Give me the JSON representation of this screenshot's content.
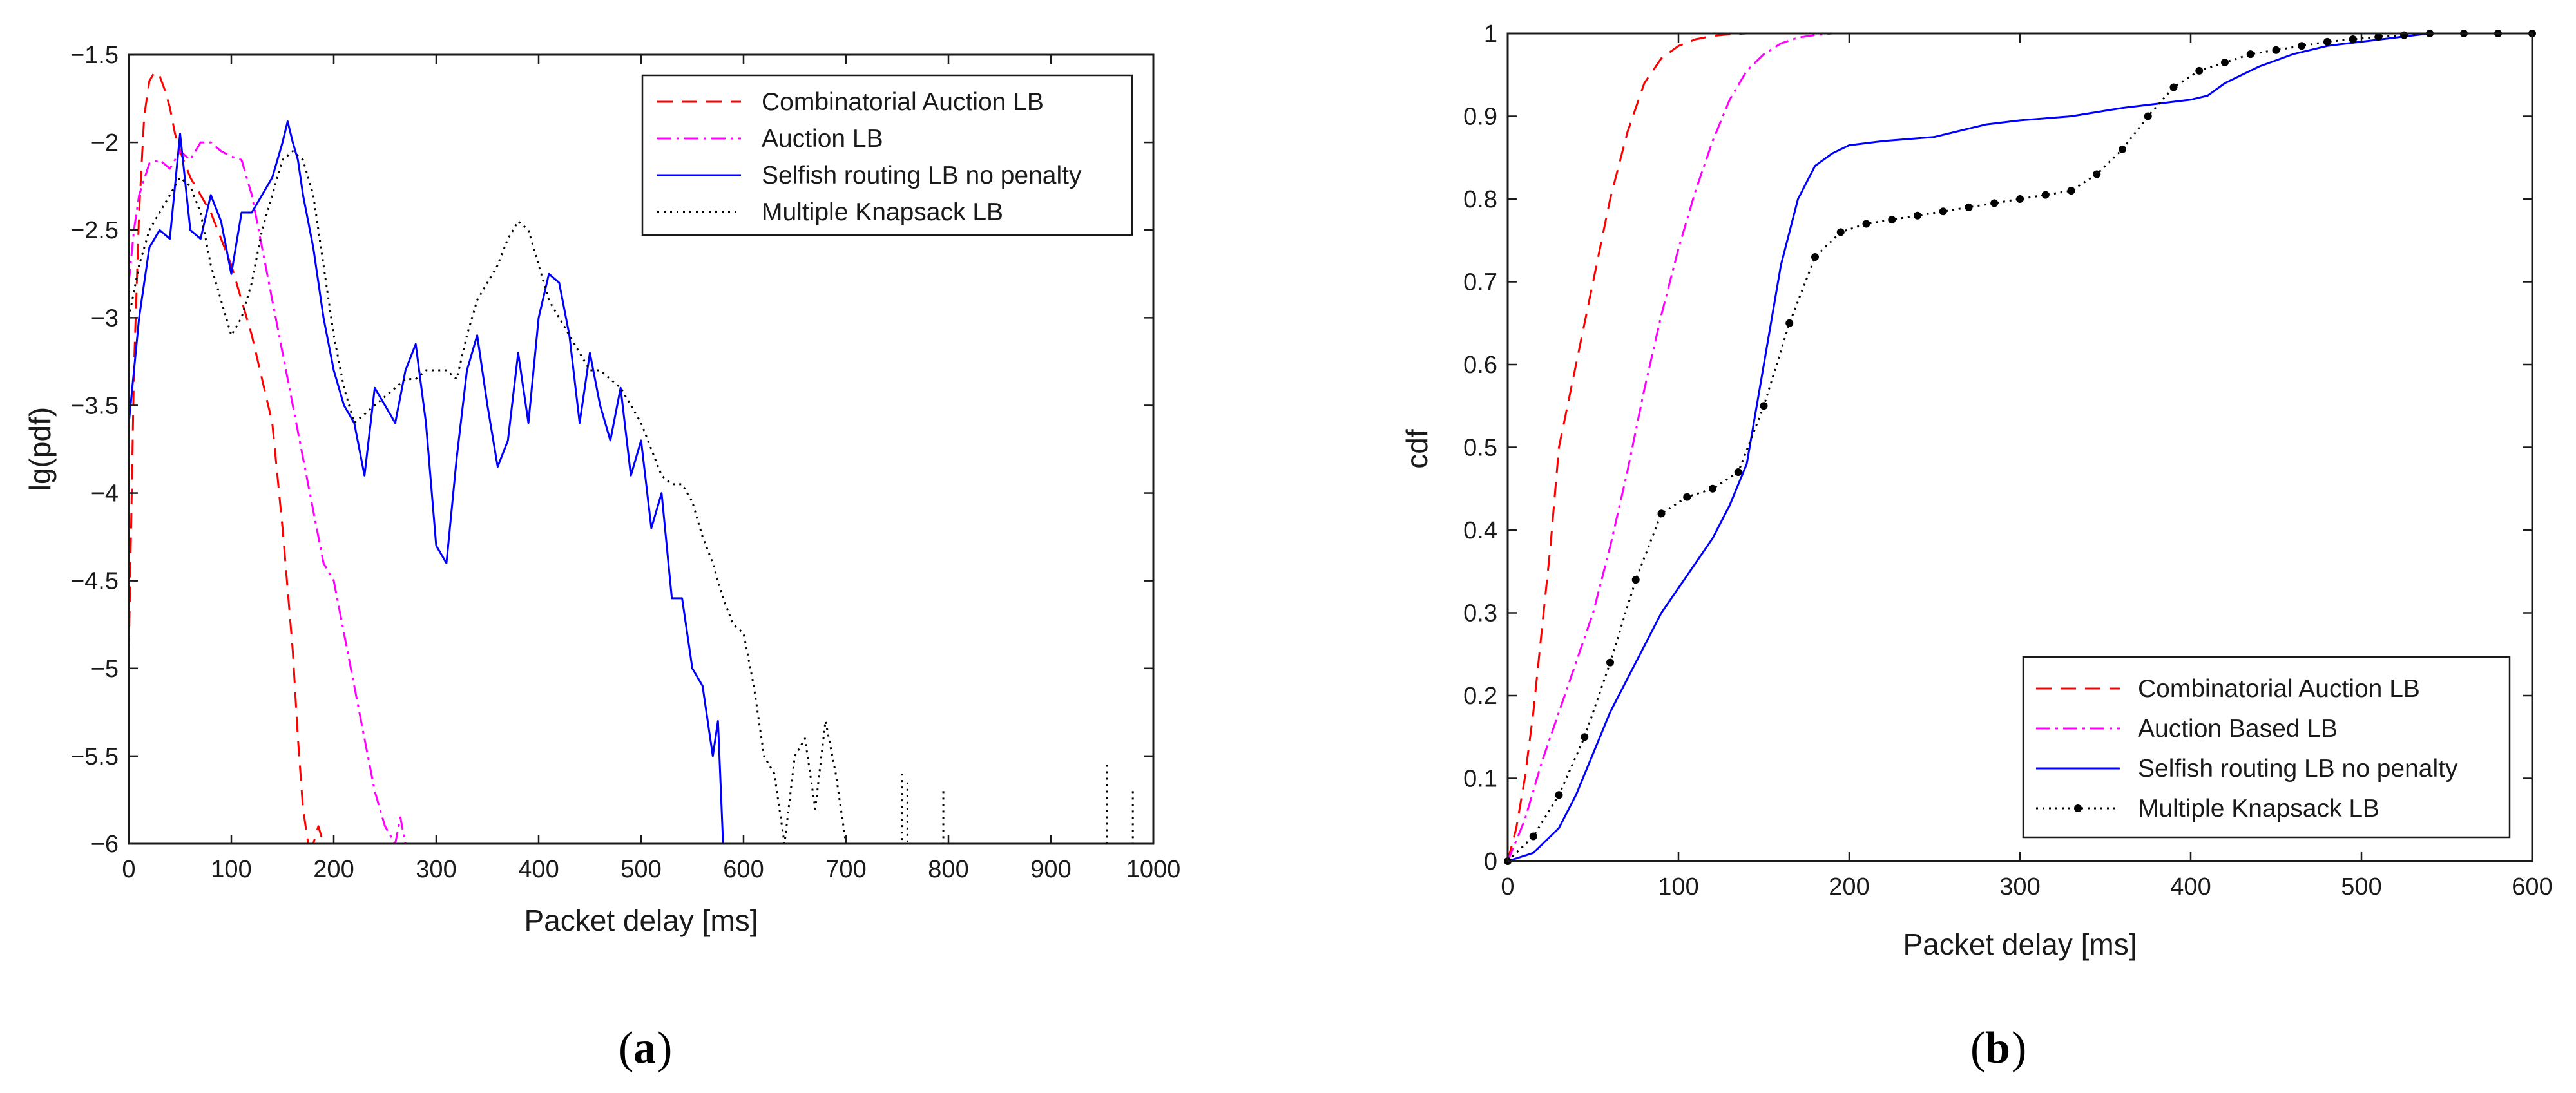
{
  "chart_data": [
    {
      "type": "line",
      "caption": "a",
      "title": "",
      "xlabel": "Packet delay [ms]",
      "ylabel": "lg(pdf)",
      "xlim": [
        0,
        1000
      ],
      "ylim": [
        -6,
        -1.5
      ],
      "xticks": [
        0,
        100,
        200,
        300,
        400,
        500,
        600,
        700,
        800,
        900,
        1000
      ],
      "yticks": [
        -6,
        -5.5,
        -5,
        -4.5,
        -4,
        -3.5,
        -3,
        -2.5,
        -2,
        -1.5
      ],
      "xtick_labels": [
        "0",
        "100",
        "200",
        "300",
        "400",
        "500",
        "600",
        "700",
        "800",
        "900",
        "1000"
      ],
      "ytick_labels": [
        "−6",
        "−5.5",
        "−5",
        "−4.5",
        "−4",
        "−3.5",
        "−3",
        "−2.5",
        "−2",
        "−1.5"
      ],
      "legend_position": "top-right",
      "series": [
        {
          "name": "Combinatorial Auction LB",
          "color": "#ff0000",
          "dash": "dashed",
          "x": [
            0,
            5,
            10,
            15,
            20,
            25,
            30,
            35,
            40,
            45,
            50,
            60,
            70,
            80,
            90,
            100,
            110,
            120,
            130,
            140,
            150,
            160,
            165,
            170,
            175,
            180,
            185,
            190
          ],
          "y": [
            -4.9,
            -3.3,
            -2.4,
            -1.85,
            -1.65,
            -1.6,
            -1.62,
            -1.7,
            -1.8,
            -1.95,
            -2.05,
            -2.2,
            -2.3,
            -2.4,
            -2.55,
            -2.7,
            -2.9,
            -3.1,
            -3.35,
            -3.6,
            -4.2,
            -4.9,
            -5.4,
            -5.8,
            -6,
            -6,
            -5.9,
            -6
          ]
        },
        {
          "name": "Auction LB",
          "color": "#ff00ff",
          "dash": "dashdot",
          "x": [
            0,
            5,
            10,
            20,
            30,
            40,
            50,
            60,
            70,
            80,
            90,
            100,
            110,
            120,
            130,
            140,
            150,
            160,
            170,
            180,
            190,
            200,
            210,
            220,
            230,
            240,
            250,
            260,
            265,
            270
          ],
          "y": [
            -2.8,
            -2.5,
            -2.3,
            -2.12,
            -2.1,
            -2.15,
            -2.05,
            -2.1,
            -2.0,
            -2.0,
            -2.05,
            -2.08,
            -2.1,
            -2.3,
            -2.6,
            -2.9,
            -3.2,
            -3.5,
            -3.8,
            -4.1,
            -4.4,
            -4.5,
            -4.8,
            -5.1,
            -5.4,
            -5.7,
            -5.9,
            -6,
            -5.85,
            -6
          ]
        },
        {
          "name": "Selfish routing LB no penalty",
          "color": "#0000ff",
          "dash": "solid",
          "x": [
            0,
            10,
            20,
            30,
            40,
            50,
            60,
            70,
            80,
            90,
            100,
            110,
            120,
            130,
            140,
            150,
            155,
            160,
            165,
            170,
            180,
            190,
            200,
            210,
            220,
            230,
            240,
            250,
            260,
            270,
            280,
            290,
            300,
            310,
            320,
            330,
            340,
            350,
            360,
            370,
            380,
            390,
            400,
            410,
            420,
            430,
            440,
            450,
            460,
            470,
            480,
            490,
            500,
            510,
            520,
            530,
            540,
            550,
            560,
            570,
            575,
            580,
            590,
            1000
          ],
          "y": [
            -3.6,
            -3.0,
            -2.6,
            -2.5,
            -2.55,
            -1.95,
            -2.5,
            -2.55,
            -2.3,
            -2.45,
            -2.75,
            -2.4,
            -2.4,
            -2.3,
            -2.2,
            -2.0,
            -1.88,
            -2.0,
            -2.1,
            -2.3,
            -2.6,
            -3.0,
            -3.3,
            -3.5,
            -3.6,
            -3.9,
            -3.4,
            -3.5,
            -3.6,
            -3.3,
            -3.15,
            -3.6,
            -4.3,
            -4.4,
            -3.8,
            -3.3,
            -3.1,
            -3.5,
            -3.85,
            -3.7,
            -3.2,
            -3.6,
            -3.0,
            -2.75,
            -2.8,
            -3.1,
            -3.6,
            -3.2,
            -3.5,
            -3.7,
            -3.4,
            -3.9,
            -3.7,
            -4.2,
            -4.0,
            -4.6,
            -4.6,
            -5.0,
            -5.1,
            -5.5,
            -5.3,
            -6.0,
            -6.0,
            -6.0
          ]
        },
        {
          "name": "Multiple Knapsack LB",
          "color": "#000000",
          "dash": "dotted",
          "x": [
            0,
            10,
            20,
            30,
            40,
            50,
            60,
            70,
            80,
            90,
            100,
            110,
            120,
            130,
            140,
            150,
            160,
            170,
            180,
            190,
            200,
            210,
            220,
            230,
            240,
            250,
            260,
            270,
            280,
            290,
            300,
            310,
            320,
            330,
            340,
            350,
            360,
            370,
            380,
            390,
            400,
            410,
            420,
            430,
            440,
            450,
            460,
            470,
            480,
            490,
            500,
            510,
            520,
            530,
            540,
            550,
            560,
            570,
            580,
            590,
            600,
            610,
            620,
            630,
            640,
            650,
            660,
            670,
            680,
            690,
            700
          ],
          "y": [
            -3.0,
            -2.7,
            -2.5,
            -2.4,
            -2.3,
            -2.2,
            -2.25,
            -2.4,
            -2.7,
            -2.9,
            -3.1,
            -3.0,
            -2.8,
            -2.5,
            -2.3,
            -2.1,
            -2.05,
            -2.1,
            -2.3,
            -2.7,
            -3.1,
            -3.4,
            -3.6,
            -3.55,
            -3.5,
            -3.45,
            -3.4,
            -3.35,
            -3.35,
            -3.3,
            -3.3,
            -3.3,
            -3.35,
            -3.1,
            -2.9,
            -2.8,
            -2.7,
            -2.55,
            -2.45,
            -2.5,
            -2.7,
            -2.9,
            -3.0,
            -3.1,
            -3.2,
            -3.3,
            -3.3,
            -3.35,
            -3.4,
            -3.5,
            -3.6,
            -3.75,
            -3.9,
            -3.95,
            -3.95,
            -4.05,
            -4.25,
            -4.4,
            -4.6,
            -4.75,
            -4.8,
            -5.1,
            -5.5,
            -5.6,
            -6.0,
            -5.5,
            -5.4,
            -5.8,
            -5.3,
            -5.6,
            -6.0
          ]
        }
      ],
      "scattered_points": [
        {
          "x": 755,
          "y": -5.6
        },
        {
          "x": 760,
          "y": -5.65
        },
        {
          "x": 795,
          "y": -5.7
        },
        {
          "x": 955,
          "y": -5.55
        },
        {
          "x": 980,
          "y": -5.7
        }
      ]
    },
    {
      "type": "line",
      "caption": "b",
      "title": "",
      "xlabel": "Packet delay [ms]",
      "ylabel": "cdf",
      "xlim": [
        0,
        600
      ],
      "ylim": [
        0,
        1
      ],
      "xticks": [
        0,
        100,
        200,
        300,
        400,
        500,
        600
      ],
      "yticks": [
        0,
        0.1,
        0.2,
        0.3,
        0.4,
        0.5,
        0.6,
        0.7,
        0.8,
        0.9,
        1
      ],
      "xtick_labels": [
        "0",
        "100",
        "200",
        "300",
        "400",
        "500",
        "600"
      ],
      "ytick_labels": [
        "0",
        "0.1",
        "0.2",
        "0.3",
        "0.4",
        "0.5",
        "0.6",
        "0.7",
        "0.8",
        "0.9",
        "1"
      ],
      "legend_position": "bottom-right",
      "series": [
        {
          "name": "Combinatorial Auction LB",
          "color": "#ff0000",
          "dash": "dashed",
          "x": [
            0,
            5,
            10,
            15,
            20,
            25,
            30,
            40,
            50,
            60,
            70,
            80,
            90,
            100,
            110,
            120,
            130,
            140,
            150,
            600
          ],
          "y": [
            0,
            0.04,
            0.1,
            0.18,
            0.28,
            0.38,
            0.5,
            0.6,
            0.7,
            0.8,
            0.88,
            0.94,
            0.97,
            0.985,
            0.993,
            0.997,
            0.999,
            1,
            1,
            1
          ]
        },
        {
          "name": "Auction Based LB",
          "color": "#ff00ff",
          "dash": "dashdot",
          "x": [
            0,
            10,
            20,
            30,
            40,
            50,
            60,
            70,
            80,
            90,
            100,
            110,
            120,
            130,
            140,
            150,
            160,
            170,
            180,
            190,
            200,
            600
          ],
          "y": [
            0,
            0.05,
            0.12,
            0.18,
            0.24,
            0.3,
            0.38,
            0.47,
            0.57,
            0.66,
            0.74,
            0.81,
            0.87,
            0.92,
            0.955,
            0.975,
            0.988,
            0.995,
            0.998,
            1,
            1,
            1
          ]
        },
        {
          "name": "Selfish routing LB no penalty",
          "color": "#0000ff",
          "dash": "solid",
          "x": [
            0,
            15,
            20,
            30,
            40,
            50,
            60,
            70,
            80,
            90,
            100,
            110,
            120,
            130,
            140,
            150,
            160,
            170,
            180,
            190,
            200,
            220,
            250,
            280,
            300,
            330,
            360,
            380,
            400,
            410,
            420,
            440,
            460,
            480,
            500,
            520,
            540,
            600
          ],
          "y": [
            0,
            0.01,
            0.02,
            0.04,
            0.08,
            0.13,
            0.18,
            0.22,
            0.26,
            0.3,
            0.33,
            0.36,
            0.39,
            0.43,
            0.48,
            0.6,
            0.72,
            0.8,
            0.84,
            0.855,
            0.865,
            0.87,
            0.875,
            0.89,
            0.895,
            0.9,
            0.91,
            0.915,
            0.92,
            0.925,
            0.94,
            0.96,
            0.975,
            0.985,
            0.99,
            0.995,
            1,
            1
          ]
        },
        {
          "name": "Multiple Knapsack LB",
          "color": "#000000",
          "dash": "dotted",
          "markers": true,
          "x": [
            0,
            15,
            30,
            45,
            60,
            75,
            90,
            105,
            120,
            135,
            150,
            165,
            180,
            195,
            210,
            225,
            240,
            255,
            270,
            285,
            300,
            315,
            330,
            345,
            360,
            375,
            390,
            405,
            420,
            435,
            450,
            465,
            480,
            495,
            510,
            525,
            540,
            560,
            580,
            600
          ],
          "y": [
            0,
            0.03,
            0.08,
            0.15,
            0.24,
            0.34,
            0.42,
            0.44,
            0.45,
            0.47,
            0.55,
            0.65,
            0.73,
            0.76,
            0.77,
            0.775,
            0.78,
            0.785,
            0.79,
            0.795,
            0.8,
            0.805,
            0.81,
            0.83,
            0.86,
            0.9,
            0.935,
            0.955,
            0.965,
            0.975,
            0.98,
            0.985,
            0.99,
            0.993,
            0.996,
            0.998,
            1,
            1,
            1,
            1
          ]
        }
      ]
    }
  ]
}
